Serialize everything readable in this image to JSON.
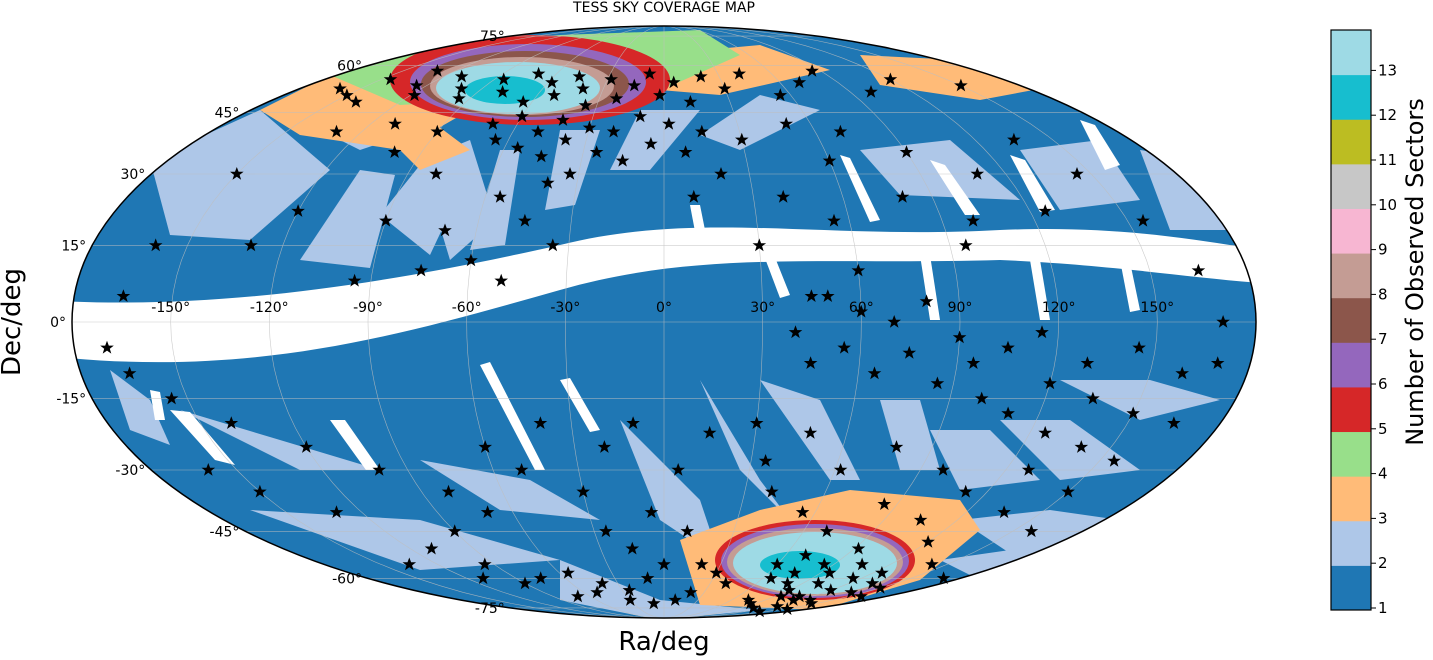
{
  "chart_data": {
    "type": "scatter",
    "projection": "aitoff-like ellipse (RA/Dec sky map)",
    "title": "TESS SKY COVERAGE MAP",
    "xlabel": "Ra/deg",
    "ylabel": "Dec/deg",
    "ra_ticks": [
      -150,
      -120,
      -90,
      -60,
      -30,
      0,
      30,
      60,
      90,
      120,
      150
    ],
    "dec_ticks": [
      75,
      60,
      45,
      30,
      15,
      0,
      -15,
      -30,
      -45,
      -60,
      -75
    ],
    "ra_tick_labels": [
      "-150°",
      "-120°",
      "-90°",
      "-60°",
      "-30°",
      "0°",
      "30°",
      "60°",
      "90°",
      "120°",
      "150°"
    ],
    "dec_tick_labels": [
      "75°",
      "60°",
      "45°",
      "30°",
      "15°",
      "0°",
      "-15°",
      "-30°",
      "-45°",
      "-60°",
      "-75°"
    ],
    "grid": true,
    "colorbar": {
      "label": "Number of Observed Sectors",
      "tick_labels": [
        "1",
        "2",
        "3",
        "4",
        "5",
        "6",
        "7",
        "8",
        "9",
        "10",
        "11",
        "12",
        "13"
      ],
      "colors": [
        "#1f77b4",
        "#aec7e8",
        "#ffbb78",
        "#98df8a",
        "#d62728",
        "#9467bd",
        "#8c564b",
        "#c49c94",
        "#f7b6d2",
        "#c7c7c7",
        "#bcbd22",
        "#17becf",
        "#9edae5"
      ]
    },
    "coverage_colors": {
      "sectors_1": "#1f77b4",
      "sectors_2": "#aec7e8",
      "sectors_3": "#ffbb78",
      "sectors_4": "#98df8a",
      "sectors_5": "#d62728",
      "sectors_6": "#9467bd",
      "sectors_7": "#8c564b",
      "sectors_8": "#c49c94",
      "sectors_12": "#17becf",
      "sectors_13": "#9edae5"
    },
    "stars": {
      "marker": "star",
      "color": "#000000",
      "points": [
        [
          -160,
          52
        ],
        [
          -150,
          50
        ],
        [
          -145,
          55
        ],
        [
          -140,
          48
        ],
        [
          -130,
          58
        ],
        [
          -125,
          53
        ],
        [
          -118,
          50
        ],
        [
          -110,
          56
        ],
        [
          -100,
          52
        ],
        [
          -95,
          49
        ],
        [
          -85,
          55
        ],
        [
          -78,
          51
        ],
        [
          -70,
          57
        ],
        [
          -64,
          48
        ],
        [
          -58,
          54
        ],
        [
          -52,
          50
        ],
        [
          -46,
          56
        ],
        [
          -40,
          52
        ],
        [
          -35,
          47
        ],
        [
          -28,
          55
        ],
        [
          -22,
          49
        ],
        [
          -15,
          53
        ],
        [
          -8,
          57
        ],
        [
          -2,
          50
        ],
        [
          5,
          54
        ],
        [
          12,
          48
        ],
        [
          20,
          56
        ],
        [
          30,
          52
        ],
        [
          42,
          57
        ],
        [
          55,
          50
        ],
        [
          70,
          54
        ],
        [
          85,
          58
        ],
        [
          100,
          51
        ],
        [
          120,
          55
        ],
        [
          150,
          53
        ],
        [
          -70,
          42
        ],
        [
          -65,
          38
        ],
        [
          -60,
          44
        ],
        [
          -55,
          36
        ],
        [
          -50,
          40
        ],
        [
          -45,
          34
        ],
        [
          -42,
          43
        ],
        [
          -38,
          38
        ],
        [
          -33,
          30
        ],
        [
          -30,
          41
        ],
        [
          -25,
          35
        ],
        [
          -20,
          40
        ],
        [
          -15,
          33
        ],
        [
          -10,
          44
        ],
        [
          -5,
          37
        ],
        [
          2,
          42
        ],
        [
          8,
          35
        ],
        [
          15,
          40
        ],
        [
          -90,
          40
        ],
        [
          -110,
          42
        ],
        [
          -130,
          40
        ],
        [
          -150,
          30
        ],
        [
          -100,
          35
        ],
        [
          -80,
          30
        ],
        [
          -120,
          22
        ],
        [
          -90,
          20
        ],
        [
          -70,
          18
        ],
        [
          -55,
          25
        ],
        [
          -45,
          20
        ],
        [
          -40,
          28
        ],
        [
          -35,
          15
        ],
        [
          -60,
          12
        ],
        [
          -50,
          8
        ],
        [
          -75,
          10
        ],
        [
          -95,
          8
        ],
        [
          -130,
          15
        ],
        [
          -160,
          15
        ],
        [
          -165,
          5
        ],
        [
          20,
          30
        ],
        [
          30,
          38
        ],
        [
          40,
          25
        ],
        [
          50,
          42
        ],
        [
          55,
          20
        ],
        [
          60,
          33
        ],
        [
          70,
          40
        ],
        [
          80,
          25
        ],
        [
          90,
          35
        ],
        [
          95,
          15
        ],
        [
          110,
          30
        ],
        [
          125,
          22
        ],
        [
          135,
          38
        ],
        [
          145,
          30
        ],
        [
          155,
          20
        ],
        [
          165,
          10
        ],
        [
          170,
          0
        ],
        [
          100,
          20
        ],
        [
          60,
          10
        ],
        [
          45,
          5
        ],
        [
          30,
          15
        ],
        [
          10,
          25
        ],
        [
          40,
          -2
        ],
        [
          45,
          -8
        ],
        [
          50,
          5
        ],
        [
          55,
          -5
        ],
        [
          60,
          2
        ],
        [
          65,
          -10
        ],
        [
          70,
          0
        ],
        [
          75,
          -6
        ],
        [
          80,
          4
        ],
        [
          85,
          -12
        ],
        [
          90,
          -3
        ],
        [
          95,
          -8
        ],
        [
          100,
          -15
        ],
        [
          105,
          -5
        ],
        [
          110,
          -18
        ],
        [
          115,
          -2
        ],
        [
          120,
          -12
        ],
        [
          125,
          -22
        ],
        [
          130,
          -8
        ],
        [
          135,
          -15
        ],
        [
          140,
          -25
        ],
        [
          145,
          -5
        ],
        [
          150,
          -18
        ],
        [
          155,
          -28
        ],
        [
          160,
          -10
        ],
        [
          165,
          -20
        ],
        [
          170,
          -8
        ],
        [
          30,
          -20
        ],
        [
          35,
          -28
        ],
        [
          40,
          -35
        ],
        [
          48,
          -22
        ],
        [
          55,
          -40
        ],
        [
          62,
          -30
        ],
        [
          70,
          -45
        ],
        [
          78,
          -25
        ],
        [
          85,
          -38
        ],
        [
          92,
          -50
        ],
        [
          98,
          -30
        ],
        [
          105,
          -42
        ],
        [
          112,
          -35
        ],
        [
          120,
          -48
        ],
        [
          128,
          -30
        ],
        [
          135,
          -40
        ],
        [
          142,
          -55
        ],
        [
          150,
          -35
        ],
        [
          158,
          -45
        ],
        [
          -10,
          -20
        ],
        [
          -20,
          -25
        ],
        [
          -30,
          -35
        ],
        [
          -25,
          -45
        ],
        [
          -15,
          -50
        ],
        [
          -5,
          -40
        ],
        [
          5,
          -30
        ],
        [
          10,
          -45
        ],
        [
          15,
          -22
        ],
        [
          20,
          -55
        ],
        [
          -40,
          -20
        ],
        [
          -50,
          -30
        ],
        [
          -60,
          -25
        ],
        [
          -70,
          -40
        ],
        [
          -80,
          -35
        ],
        [
          -90,
          -45
        ],
        [
          -100,
          -30
        ],
        [
          -110,
          -50
        ],
        [
          -120,
          -25
        ],
        [
          -130,
          -40
        ],
        [
          -140,
          -20
        ],
        [
          -150,
          -35
        ],
        [
          -160,
          -30
        ],
        [
          -165,
          -10
        ],
        [
          -170,
          -5
        ],
        [
          -155,
          -15
        ],
        [
          -135,
          -55
        ],
        [
          -95,
          -55
        ],
        [
          -75,
          -60
        ],
        [
          -55,
          -58
        ],
        [
          -40,
          -62
        ],
        [
          -25,
          -65
        ],
        [
          -10,
          -60
        ],
        [
          0,
          -55
        ],
        [
          60,
          -55
        ],
        [
          65,
          -60
        ],
        [
          70,
          -52
        ],
        [
          75,
          -58
        ],
        [
          80,
          -62
        ],
        [
          85,
          -55
        ],
        [
          90,
          -65
        ],
        [
          95,
          -58
        ],
        [
          100,
          -62
        ],
        [
          105,
          -55
        ],
        [
          110,
          -68
        ],
        [
          115,
          -60
        ],
        [
          120,
          -65
        ],
        [
          125,
          -58
        ],
        [
          130,
          -70
        ],
        [
          135,
          -62
        ],
        [
          140,
          -66
        ],
        [
          145,
          -72
        ],
        [
          150,
          -64
        ],
        [
          160,
          -68
        ],
        [
          170,
          -60
        ],
        [
          75,
          -70
        ],
        [
          85,
          -72
        ],
        [
          95,
          -68
        ],
        [
          105,
          -75
        ],
        [
          115,
          -70
        ],
        [
          125,
          -74
        ],
        [
          140,
          -78
        ],
        [
          155,
          -76
        ],
        [
          40,
          -62
        ],
        [
          30,
          -58
        ],
        [
          20,
          -66
        ],
        [
          10,
          -70
        ],
        [
          -10,
          -72
        ],
        [
          -30,
          -70
        ],
        [
          -50,
          -66
        ],
        [
          -70,
          -68
        ],
        [
          -90,
          -62
        ],
        [
          -110,
          -60
        ]
      ]
    }
  }
}
